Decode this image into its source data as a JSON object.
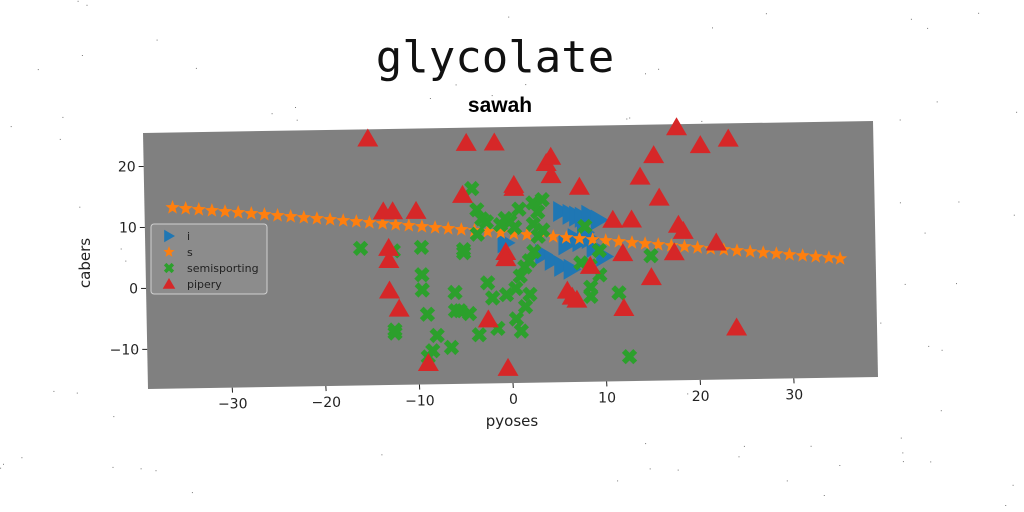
{
  "chart_data": {
    "type": "scatter",
    "title": "glycolate",
    "subtitle": "sawah",
    "xlabel": "pyoses",
    "ylabel": "cabers",
    "xlim": [
      -39,
      39
    ],
    "ylim": [
      -16.5,
      25.5
    ],
    "xticks": [
      -30,
      -20,
      -10,
      0,
      10,
      20,
      30
    ],
    "xtick_labels": [
      "−30",
      "−20",
      "−10",
      "0",
      "10",
      "20",
      "30"
    ],
    "yticks": [
      -10,
      0,
      10,
      20
    ],
    "ytick_labels": [
      "−10",
      "0",
      "10",
      "20"
    ],
    "grid": false,
    "legend_position": "center-left",
    "plot_background": "#808080",
    "series": [
      {
        "name": "i",
        "marker": "triangle-right",
        "color": "#1f77b4",
        "points": [
          [
            5.5,
            11.5
          ],
          [
            6.5,
            11
          ],
          [
            7.2,
            10.7
          ],
          [
            7.8,
            10.5
          ],
          [
            8.5,
            10.8
          ],
          [
            9.5,
            10
          ],
          [
            8,
            8
          ],
          [
            7,
            7
          ],
          [
            6,
            6
          ],
          [
            7.5,
            6.5
          ],
          [
            8.5,
            7
          ],
          [
            9,
            5.5
          ],
          [
            10,
            4
          ],
          [
            3.5,
            4.5
          ],
          [
            4.5,
            3.5
          ],
          [
            5.5,
            2.5
          ],
          [
            6.5,
            2
          ],
          [
            -0.5,
            6.5
          ]
        ]
      },
      {
        "name": "s",
        "marker": "star",
        "color": "#ff7f0e",
        "points": [
          [
            -36,
            13.2
          ],
          [
            -34.6,
            13
          ],
          [
            -33.2,
            12.8
          ],
          [
            -31.8,
            12.6
          ],
          [
            -30.4,
            12.4
          ],
          [
            -29,
            12.2
          ],
          [
            -27.6,
            12
          ],
          [
            -26.2,
            11.8
          ],
          [
            -24.8,
            11.6
          ],
          [
            -23.4,
            11.4
          ],
          [
            -22,
            11.2
          ],
          [
            -20.6,
            11
          ],
          [
            -19.2,
            10.8
          ],
          [
            -17.8,
            10.6
          ],
          [
            -16.4,
            10.4
          ],
          [
            -15,
            10.2
          ],
          [
            -13.6,
            10
          ],
          [
            -12.2,
            9.8
          ],
          [
            -10.8,
            9.6
          ],
          [
            -9.4,
            9.4
          ],
          [
            -8,
            9.2
          ],
          [
            -6.6,
            9
          ],
          [
            -5.2,
            8.8
          ],
          [
            -3.8,
            8.6
          ],
          [
            -2.4,
            8.4
          ],
          [
            -1,
            8.2
          ],
          [
            0.4,
            8
          ],
          [
            1.8,
            7.8
          ],
          [
            3.2,
            7.6
          ],
          [
            4.6,
            7.4
          ],
          [
            6,
            7.2
          ],
          [
            7.4,
            7
          ],
          [
            8.8,
            6.8
          ],
          [
            10.2,
            6.6
          ],
          [
            11.6,
            6.4
          ],
          [
            13,
            6.2
          ],
          [
            14.4,
            6
          ],
          [
            15.8,
            5.8
          ],
          [
            17.2,
            5.6
          ],
          [
            18.6,
            5.4
          ],
          [
            20,
            5.2
          ],
          [
            21.4,
            5
          ],
          [
            22.8,
            4.8
          ],
          [
            24.2,
            4.6
          ],
          [
            25.6,
            4.4
          ],
          [
            27,
            4.2
          ],
          [
            28.4,
            4
          ],
          [
            29.8,
            3.8
          ],
          [
            31.2,
            3.6
          ],
          [
            32.6,
            3.4
          ],
          [
            34,
            3.2
          ],
          [
            35.2,
            3
          ]
        ]
      },
      {
        "name": "semisporting",
        "marker": "x-filled",
        "color": "#2ca02c",
        "points": [
          [
            -4,
            15.5
          ],
          [
            -3.5,
            12
          ],
          [
            -3,
            10.5
          ],
          [
            -2.5,
            10
          ],
          [
            -3.5,
            8
          ],
          [
            -12.5,
            5.5
          ],
          [
            -16,
            6
          ],
          [
            -9.5,
            6
          ],
          [
            -5,
            5.5
          ],
          [
            -5,
            5
          ],
          [
            -9.5,
            1.5
          ],
          [
            -9.5,
            -1
          ],
          [
            -6,
            -1.5
          ],
          [
            -2.5,
            0
          ],
          [
            -2,
            -2.5
          ],
          [
            -0.5,
            -2
          ],
          [
            -5.5,
            -4.5
          ],
          [
            -6,
            -4.5
          ],
          [
            -4.5,
            -5
          ],
          [
            -9,
            -5
          ],
          [
            -12.5,
            -7.5
          ],
          [
            -12.5,
            -8
          ],
          [
            -8,
            -8.5
          ],
          [
            -3.5,
            -8.5
          ],
          [
            -1.5,
            -7.5
          ],
          [
            0.5,
            -6
          ],
          [
            1,
            -8
          ],
          [
            1.5,
            -4
          ],
          [
            2,
            -2
          ],
          [
            0.5,
            -1
          ],
          [
            1,
            1
          ],
          [
            1.5,
            2.5
          ],
          [
            2,
            3.5
          ],
          [
            2.5,
            5
          ],
          [
            3,
            7.5
          ],
          [
            3.5,
            8.5
          ],
          [
            2.5,
            9.5
          ],
          [
            3,
            11.5
          ],
          [
            2.5,
            13
          ],
          [
            3.5,
            13.5
          ],
          [
            1,
            12
          ],
          [
            0,
            10
          ],
          [
            -0.5,
            10.5
          ],
          [
            -1,
            9.5
          ],
          [
            0.5,
            9
          ],
          [
            9.5,
            5
          ],
          [
            7.5,
            3
          ],
          [
            8.5,
            2.5
          ],
          [
            9.5,
            1
          ],
          [
            8.5,
            -1
          ],
          [
            8.5,
            -2.5
          ],
          [
            11.5,
            -2
          ],
          [
            -8.5,
            -11
          ],
          [
            -9,
            -12
          ],
          [
            12.5,
            -12.5
          ],
          [
            -6.5,
            -10.5
          ],
          [
            15,
            4
          ],
          [
            8,
            9
          ]
        ]
      },
      {
        "name": "pipery",
        "marker": "triangle-up",
        "color": "#d62728",
        "points": [
          [
            -15,
            24
          ],
          [
            -4.5,
            23
          ],
          [
            -1.5,
            23
          ],
          [
            4,
            19.5
          ],
          [
            4.5,
            20.5
          ],
          [
            4.5,
            17.5
          ],
          [
            0.5,
            16
          ],
          [
            0.5,
            15.5
          ],
          [
            7.5,
            15.5
          ],
          [
            -5,
            14.5
          ],
          [
            -13.5,
            12
          ],
          [
            -12.5,
            12
          ],
          [
            -10,
            12
          ],
          [
            11,
            10
          ],
          [
            13,
            10
          ],
          [
            16,
            13.5
          ],
          [
            14,
            17
          ],
          [
            15.5,
            20.5
          ],
          [
            18,
            25
          ],
          [
            20.5,
            22
          ],
          [
            23.5,
            23
          ],
          [
            18,
            9
          ],
          [
            18.5,
            8
          ],
          [
            22,
            6
          ],
          [
            -13,
            6
          ],
          [
            -13,
            4
          ],
          [
            -0.5,
            5
          ],
          [
            -0.5,
            4
          ],
          [
            12,
            4.5
          ],
          [
            8.5,
            2.5
          ],
          [
            17.5,
            4.5
          ],
          [
            15,
            0.5
          ],
          [
            -13,
            -1
          ],
          [
            6,
            -1.5
          ],
          [
            6.5,
            -2.5
          ],
          [
            7,
            -3
          ],
          [
            -12,
            -4
          ],
          [
            12,
            -4.5
          ],
          [
            -2.5,
            -6
          ],
          [
            24,
            -8
          ],
          [
            -9,
            -13
          ],
          [
            -0.5,
            -14
          ]
        ]
      }
    ]
  }
}
